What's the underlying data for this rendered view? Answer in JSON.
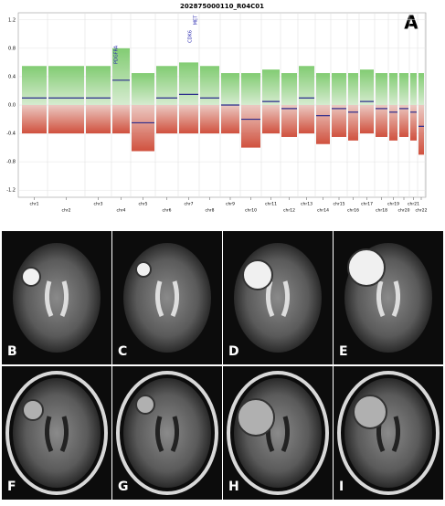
{
  "chart_data": {
    "type": "line",
    "title": "202875000110_R04C01",
    "panel_label": "A",
    "categories": [
      "chr1",
      "chr2",
      "chr3",
      "chr4",
      "chr5",
      "chr6",
      "chr7",
      "chr8",
      "chr9",
      "chr10",
      "chr11",
      "chr12",
      "chr13",
      "chr14",
      "chr15",
      "chr16",
      "chr17",
      "chr18",
      "chr19",
      "chr20",
      "chr21",
      "chr22"
    ],
    "values": [
      0.1,
      0.1,
      0.1,
      0.35,
      -0.25,
      0.1,
      0.15,
      0.1,
      0,
      -0.2,
      0.05,
      -0.05,
      0.1,
      -0.15,
      -0.05,
      -0.1,
      0.05,
      -0.05,
      -0.1,
      -0.05,
      -0.1,
      -0.3
    ],
    "color": "#2b2b8c",
    "ylim": [
      -1.3,
      1.3
    ],
    "yticks": [
      1.2,
      0.8,
      0.4,
      {
        "value": 0,
        "label": "0.0"
      },
      -0.4,
      -0.8,
      -1.2
    ],
    "annotations": [
      "PDGFRA",
      "CDK6",
      "MET"
    ]
  },
  "panels": [
    "B",
    "C",
    "D",
    "E",
    "F",
    "G",
    "H",
    "I"
  ]
}
